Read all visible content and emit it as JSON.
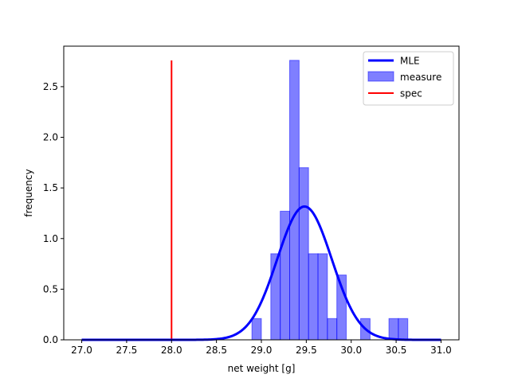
{
  "chart_data": {
    "type": "bar",
    "title": "",
    "xlabel": "net weight [g]",
    "ylabel": "frequency",
    "xlim": [
      26.8,
      31.2
    ],
    "ylim": [
      0,
      2.9
    ],
    "xticks": [
      27.0,
      27.5,
      28.0,
      28.5,
      29.0,
      29.5,
      30.0,
      30.5,
      31.0
    ],
    "xtick_labels": [
      "27.0",
      "27.5",
      "28.0",
      "28.5",
      "29.0",
      "29.5",
      "30.0",
      "30.5",
      "31.0"
    ],
    "yticks": [
      0.0,
      0.5,
      1.0,
      1.5,
      2.0,
      2.5
    ],
    "ytick_labels": [
      "0.0",
      "0.5",
      "1.0",
      "1.5",
      "2.0",
      "2.5"
    ],
    "grid": false,
    "legend": {
      "placement": "top-right",
      "entries": [
        {
          "label": "MLE",
          "kind": "line",
          "color": "#0000ff"
        },
        {
          "label": "measure",
          "kind": "patch",
          "color": "#0000ff"
        },
        {
          "label": "spec",
          "kind": "line",
          "color": "#ff0000"
        }
      ]
    },
    "histogram": {
      "name": "measure",
      "color": "#0000ff",
      "alpha": 0.5,
      "bin_width": 0.1053,
      "bins": [
        {
          "x0": 28.895,
          "x1": 29.0,
          "height": 0.21
        },
        {
          "x0": 29.105,
          "x1": 29.21,
          "height": 0.85
        },
        {
          "x0": 29.21,
          "x1": 29.315,
          "height": 1.27
        },
        {
          "x0": 29.315,
          "x1": 29.42,
          "height": 2.76
        },
        {
          "x0": 29.42,
          "x1": 29.525,
          "height": 1.7
        },
        {
          "x0": 29.525,
          "x1": 29.63,
          "height": 0.85
        },
        {
          "x0": 29.63,
          "x1": 29.735,
          "height": 0.85
        },
        {
          "x0": 29.735,
          "x1": 29.84,
          "height": 0.21
        },
        {
          "x0": 29.84,
          "x1": 29.945,
          "height": 0.64
        },
        {
          "x0": 30.105,
          "x1": 30.21,
          "height": 0.21
        },
        {
          "x0": 30.42,
          "x1": 30.525,
          "height": 0.21
        },
        {
          "x0": 30.525,
          "x1": 30.63,
          "height": 0.21
        }
      ]
    },
    "mle_curve": {
      "name": "MLE",
      "color": "#0000ff",
      "distribution": "normal",
      "mean": 29.48,
      "std": 0.303,
      "x_range": [
        27.0,
        31.0
      ]
    },
    "spec_line": {
      "name": "spec",
      "color": "#ff0000",
      "x": 28.0,
      "y_range": [
        0,
        2.76
      ]
    }
  }
}
